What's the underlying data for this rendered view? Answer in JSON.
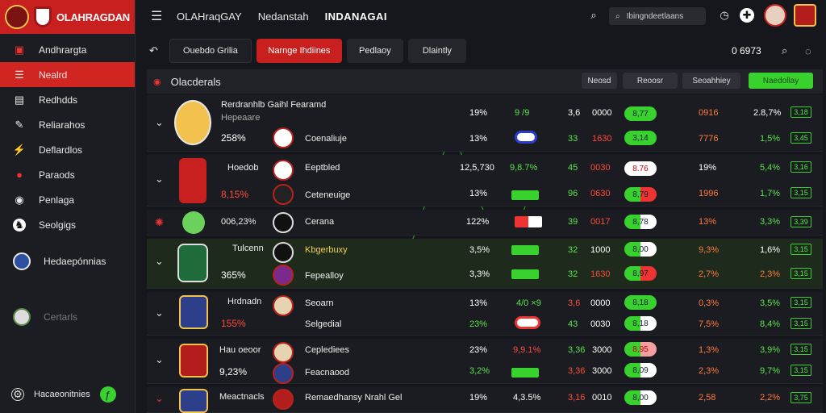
{
  "brand": {
    "title": "OLAHRAGDAN",
    "subtitle": ""
  },
  "sidebar": {
    "items": [
      {
        "label": "Andhrargta",
        "icon": "dashboard-icon"
      },
      {
        "label": "Nealrd",
        "icon": "list-icon"
      },
      {
        "label": "Redhdds",
        "icon": "document-icon"
      },
      {
        "label": "Reliarahos",
        "icon": "whistle-icon"
      },
      {
        "label": "Deflardlos",
        "icon": "signal-icon"
      },
      {
        "label": "Paraods",
        "icon": "heart-icon"
      },
      {
        "label": "Penlaga",
        "icon": "globe-icon"
      },
      {
        "label": "Seolgigs",
        "icon": "shield-icon"
      },
      {
        "label": "Hedaepónnias",
        "icon": "club-crest-icon"
      },
      {
        "label": "Certarls",
        "icon": "club-crest-icon"
      }
    ],
    "footer_label": "Hacaeonitnies"
  },
  "topbar": {
    "menu": [
      "OLAHraqGAY",
      "Nedanstah",
      "INDANAGAI"
    ],
    "search_placeholder": "Ibingndeetlaans"
  },
  "subbar": {
    "tabs": [
      "Ouebdo Grilia",
      "Narnge Ihdiines",
      "Pedlaoy",
      "Dlaintly"
    ],
    "score": "0 6973"
  },
  "panel": {
    "title": "Olacderals",
    "filters": [
      "Neosd",
      "Reoosr",
      "Seoahhiey",
      "Naedollay"
    ]
  },
  "rows": [
    {
      "player": "Rerdranhlb Gaihl Fearamd",
      "sub": "Hepeaare",
      "pct": "258%",
      "team1": "",
      "team2": "Coenaliuje",
      "n1": "19%",
      "n2": "13%",
      "col_a": "3,6",
      "col_b": "0000",
      "odd1": "8,77",
      "odd2": "3,14",
      "r1": "0916",
      "r2": "7776",
      "g1": "2.8,7%",
      "g2": "1,5%",
      "box1": "3,18",
      "box2": "3,45"
    },
    {
      "player": "Hoedob",
      "sub": "",
      "pct": "8,15%",
      "team1": "Eeptbled",
      "team2": "Ceteneuige",
      "n1": "12,5,730",
      "n2": "13%",
      "col_a": "45",
      "col_b": "0030",
      "odd1": "8.76",
      "odd2": "8,79",
      "r1": "19%",
      "r2": "1996",
      "g1": "5,4%",
      "g2": "1,7%",
      "box1": "3,16",
      "box2": "3,15"
    },
    {
      "player": "006,23%",
      "sub": "",
      "pct": "",
      "team1": "Cerana",
      "team2": "",
      "n1": "122%",
      "n2": "",
      "col_a": "39",
      "col_b": "0017",
      "odd1": "8,78",
      "odd2": "",
      "r1": "13%",
      "r2": "",
      "g1": "3,3%",
      "g2": "",
      "box1": "3,39",
      "box2": ""
    },
    {
      "player": "Tulcenn",
      "sub": "",
      "pct": "365%",
      "team1": "Kbgerbuxy",
      "team2": "Fepealloy",
      "n1": "3,5%",
      "n2": "3,3%",
      "col_a": "32",
      "col_b": "1000",
      "odd1": "8,00",
      "odd2": "8,97",
      "r1": "9,3%",
      "r2": "2,7%",
      "g1": "1,6%",
      "g2": "2,3%",
      "box1": "3,15",
      "box2": "3,15"
    },
    {
      "player": "Hrdnadn",
      "sub": "",
      "pct": "155%",
      "team1": "Seoarn",
      "team2": "Selgedial",
      "n1": "13%",
      "n2": "23%",
      "col_a": "3,6",
      "col_b": "0000",
      "odd1": "8,18",
      "odd2": "8,18",
      "r1": "0,3%",
      "r2": "7,5%",
      "g1": "3,5%",
      "g2": "8,4%",
      "box1": "3,15",
      "box2": "3,15"
    },
    {
      "player": "Hau oeoor",
      "sub": "",
      "pct": "9,23%",
      "team1": "Ceplediees",
      "team2": "Feacnaood",
      "n1": "23%",
      "n2": "3,2%",
      "col_a": "3,36",
      "col_b": "3000",
      "odd1": "8,95",
      "odd2": "8,09",
      "r1": "1,3%",
      "r2": "2,3%",
      "g1": "3,9%",
      "g2": "9,7%",
      "box1": "3,15",
      "box2": "3,15"
    },
    {
      "player": "Meactnacls",
      "sub": "",
      "pct": "",
      "team1": "Remaedhansy Nrahl Gel",
      "team2": "",
      "n1": "19%",
      "n2": "",
      "col_a": "3,16",
      "col_b": "0010",
      "odd1": "8,00",
      "odd2": "",
      "r1": "2,58",
      "r2": "",
      "g1": "2,2%",
      "g2": "",
      "box1": "3,75",
      "box2": ""
    }
  ],
  "colors": {
    "accent": "#c8201f",
    "positive": "#38d12e",
    "negative": "#ff4b3a"
  }
}
